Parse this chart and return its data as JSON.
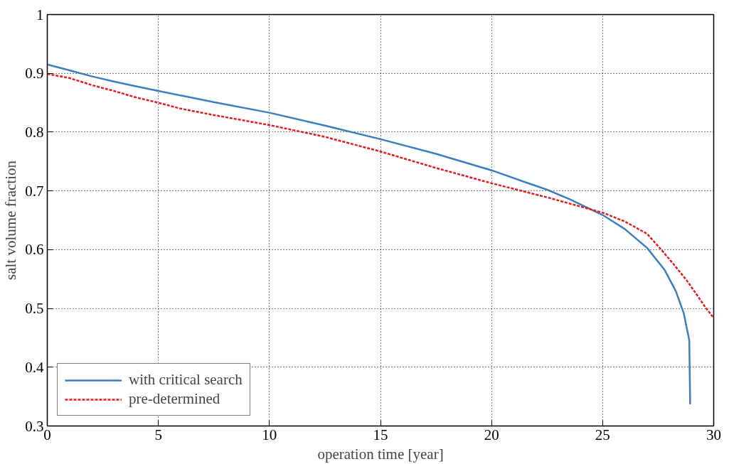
{
  "chart_data": {
    "type": "line",
    "xlabel": "operation time [year]",
    "ylabel": "salt volume fraction",
    "xlim": [
      0,
      30
    ],
    "xticks": [
      0,
      5,
      10,
      15,
      20,
      25,
      30
    ],
    "ylim": [
      0.3,
      1
    ],
    "yticks": [
      0.3,
      0.4,
      0.5,
      0.6,
      0.7,
      0.8,
      0.9,
      1
    ],
    "grid": true,
    "legend": "bottom left",
    "series": [
      {
        "name": "with critical search",
        "color": "#3b7dbf",
        "line_style": "solid",
        "x": [
          0,
          1,
          2,
          3,
          4,
          5,
          7.5,
          10,
          12.5,
          15,
          17.5,
          20,
          21.5,
          22.5,
          23.5,
          24.5,
          25,
          26,
          27,
          27.8,
          28.3,
          28.65,
          28.9,
          28.94
        ],
        "values": [
          0.915,
          0.905,
          0.895,
          0.886,
          0.878,
          0.87,
          0.851,
          0.833,
          0.811,
          0.788,
          0.763,
          0.735,
          0.715,
          0.702,
          0.686,
          0.668,
          0.659,
          0.635,
          0.603,
          0.565,
          0.529,
          0.492,
          0.446,
          0.337
        ]
      },
      {
        "name": "pre-determined",
        "color": "#e41a1c",
        "line_style": "dashed",
        "x": [
          0,
          1,
          2,
          3,
          4,
          5,
          6,
          7.5,
          10,
          12.5,
          15,
          17.5,
          20,
          22.5,
          25,
          26,
          27,
          27.64,
          28.2,
          28.78,
          29.3,
          29.66,
          30
        ],
        "values": [
          0.899,
          0.892,
          0.88,
          0.87,
          0.859,
          0.85,
          0.84,
          0.829,
          0.812,
          0.792,
          0.767,
          0.739,
          0.713,
          0.689,
          0.663,
          0.648,
          0.627,
          0.6,
          0.575,
          0.548,
          0.52,
          0.5,
          0.484
        ]
      }
    ]
  }
}
